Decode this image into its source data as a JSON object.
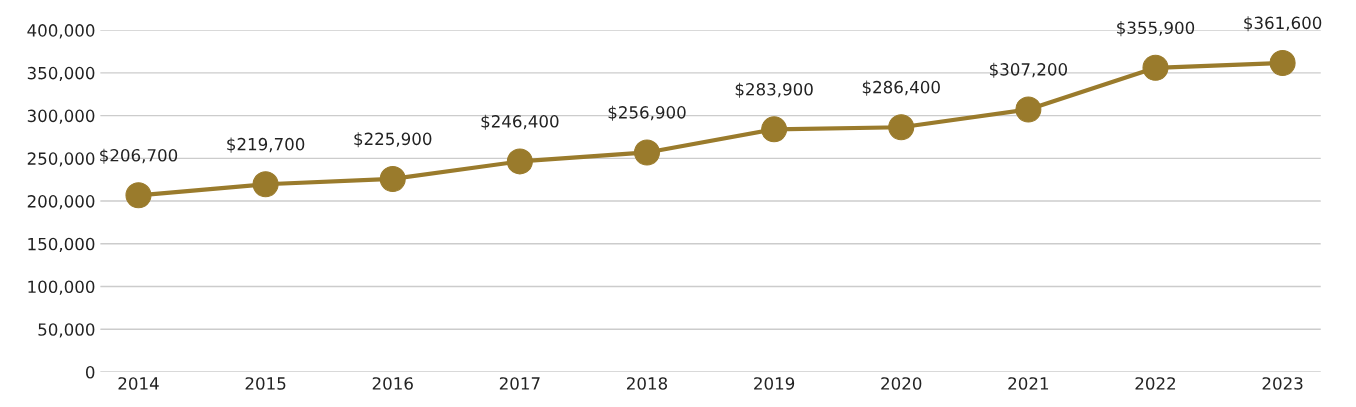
{
  "chart_data": {
    "type": "line",
    "categories": [
      "2014",
      "2015",
      "2016",
      "2017",
      "2018",
      "2019",
      "2020",
      "2021",
      "2022",
      "2023"
    ],
    "values": [
      206700,
      219700,
      225900,
      246400,
      256900,
      283900,
      286400,
      307200,
      355900,
      361600
    ],
    "value_labels": [
      "$206,700",
      "$219,700",
      "$225,900",
      "$246,400",
      "$256,900",
      "$283,900",
      "$286,400",
      "$307,200",
      "$355,900",
      "$361,600"
    ],
    "color": "#9a7b2c",
    "marker": "circle",
    "line_style": "solid",
    "grid": "y",
    "legend": false,
    "ylim": [
      0,
      400000
    ],
    "yticks": [
      0,
      {
        "value": 50000,
        "label": "50,000"
      },
      {
        "value": 100000,
        "label": "100,000"
      },
      {
        "value": 150000,
        "label": "150,000"
      },
      {
        "value": 200000,
        "label": "200,000"
      },
      {
        "value": 250000,
        "label": "250,000"
      },
      {
        "value": 300000,
        "label": "300,000"
      },
      {
        "value": 350000,
        "label": "350,000"
      },
      {
        "value": 400000,
        "label": "400,000"
      }
    ]
  }
}
